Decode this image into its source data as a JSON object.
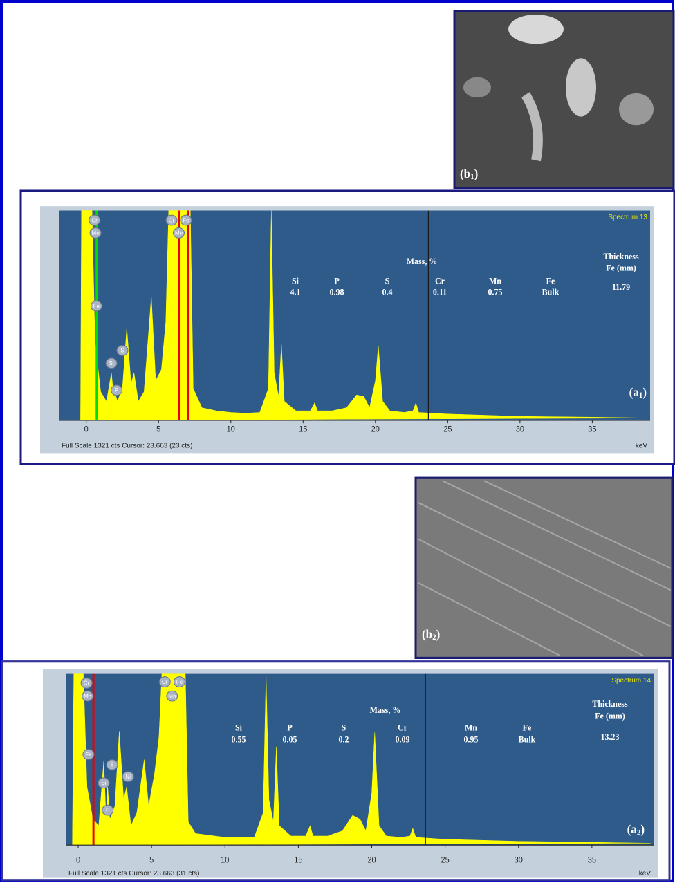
{
  "images": [
    {
      "label": {
        "prefix": "(b",
        "sub": "1",
        "suffix": ")"
      }
    },
    {
      "label": {
        "prefix": "(b",
        "sub": "2",
        "suffix": ")"
      }
    }
  ],
  "chart_data": [
    {
      "type": "area",
      "spectrum_name": "Spectrum 13",
      "footer": "Full Scale 1321 cts Cursor: 23.663 (23 cts)",
      "xlabel": "keV",
      "panel_label": {
        "prefix": "(a",
        "sub": "1",
        "suffix": ")"
      },
      "xlim": [
        -1.9,
        39
      ],
      "xticks": [
        0,
        5,
        10,
        15,
        20,
        25,
        30,
        35
      ],
      "ylim": [
        0,
        1321
      ],
      "color": "#ffff00",
      "cursor": 23.663,
      "markers": [
        {
          "x": 0.72,
          "color": "#00dd00"
        },
        {
          "x": 6.4,
          "color": "#ee0000"
        },
        {
          "x": 7.06,
          "color": "#ee0000"
        }
      ],
      "x": [
        -0.4,
        -0.33,
        0.4,
        0.6,
        1.0,
        1.4,
        1.74,
        1.9,
        2.0,
        2.15,
        2.5,
        2.8,
        3.1,
        3.3,
        3.6,
        4.0,
        4.5,
        4.8,
        5.2,
        5.5,
        5.7,
        7.2,
        7.4,
        8,
        9,
        10,
        11,
        12,
        12.6,
        12.8,
        13.0,
        13.3,
        13.5,
        13.7,
        14.5,
        15.5,
        15.8,
        16,
        17,
        18,
        18.7,
        19.2,
        19.6,
        20.0,
        20.2,
        20.5,
        21,
        22,
        22.6,
        22.8,
        23,
        25,
        30,
        35,
        39
      ],
      "values": [
        0,
        1321,
        1321,
        500,
        180,
        120,
        300,
        150,
        170,
        120,
        200,
        585,
        230,
        300,
        120,
        180,
        780,
        250,
        320,
        620,
        1321,
        1321,
        200,
        80,
        60,
        50,
        45,
        50,
        200,
        1321,
        300,
        150,
        480,
        120,
        60,
        60,
        110,
        60,
        60,
        80,
        160,
        150,
        80,
        250,
        470,
        120,
        60,
        50,
        60,
        110,
        50,
        40,
        25,
        20,
        15
      ],
      "peak_labels": [
        {
          "label": "Cr",
          "x": 0.57,
          "y": 1260
        },
        {
          "label": "Mn",
          "x": 0.64,
          "y": 1180
        },
        {
          "label": "Fe",
          "x": 0.7,
          "y": 720
        },
        {
          "label": "Si",
          "x": 1.74,
          "y": 360
        },
        {
          "label": "P",
          "x": 2.1,
          "y": 190
        },
        {
          "label": "S",
          "x": 2.5,
          "y": 440
        },
        {
          "label": "Cr",
          "x": 5.9,
          "y": 1260
        },
        {
          "label": "Fe",
          "x": 6.9,
          "y": 1260
        },
        {
          "label": "Mn",
          "x": 6.4,
          "y": 1180
        }
      ],
      "table": {
        "title": "Mass, %",
        "header": [
          "Si",
          "P",
          "S",
          "Cr",
          "Mn",
          "Fe"
        ],
        "values": [
          "4.1",
          "0.98",
          "0.4",
          "0.11",
          "0.75",
          "Bulk"
        ]
      },
      "thickness": {
        "title": [
          "Thickness",
          "Fe (mm)"
        ],
        "value": "11.79"
      }
    },
    {
      "type": "area",
      "spectrum_name": "Spectrum 14",
      "footer": "Full Scale 1321 cts Cursor: 23.663 (31 cts)",
      "xlabel": "keV",
      "panel_label": {
        "prefix": "(a",
        "sub": "2",
        "suffix": ")"
      },
      "xlim": [
        -0.85,
        39.2
      ],
      "xticks": [
        0,
        5,
        10,
        15,
        20,
        25,
        30,
        35
      ],
      "ylim": [
        0,
        1321
      ],
      "color": "#ffff00",
      "cursor": 23.663,
      "markers": [
        {
          "x": 1.04,
          "color": "#ee0000"
        }
      ],
      "x": [
        -0.4,
        -0.3,
        0.35,
        0.6,
        1.0,
        1.4,
        1.74,
        1.9,
        2.0,
        2.15,
        2.5,
        2.8,
        3.1,
        3.3,
        3.6,
        4.0,
        4.5,
        4.8,
        5.2,
        5.5,
        5.7,
        7.3,
        7.5,
        8,
        10,
        12,
        12.6,
        12.8,
        13.0,
        13.3,
        13.5,
        13.7,
        14.5,
        15.5,
        15.8,
        16,
        17,
        18,
        18.7,
        19.2,
        19.6,
        20.0,
        20.2,
        20.5,
        21,
        22,
        22.6,
        22.8,
        23,
        25,
        30,
        35,
        39
      ],
      "values": [
        0,
        1321,
        1321,
        450,
        200,
        150,
        650,
        200,
        470,
        200,
        300,
        880,
        350,
        450,
        150,
        250,
        660,
        300,
        550,
        830,
        1321,
        1321,
        180,
        90,
        60,
        60,
        250,
        1321,
        350,
        180,
        760,
        150,
        70,
        70,
        150,
        70,
        70,
        110,
        230,
        200,
        110,
        400,
        870,
        150,
        70,
        60,
        70,
        130,
        60,
        45,
        30,
        22,
        15
      ],
      "peak_labels": [
        {
          "label": "Cr",
          "x": 0.57,
          "y": 1250
        },
        {
          "label": "Mn",
          "x": 0.64,
          "y": 1150
        },
        {
          "label": "Fe",
          "x": 0.7,
          "y": 700
        },
        {
          "label": "S",
          "x": 2.31,
          "y": 620
        },
        {
          "label": "Si",
          "x": 1.74,
          "y": 480
        },
        {
          "label": "P",
          "x": 2.01,
          "y": 270
        },
        {
          "label": "Ni",
          "x": 3.4,
          "y": 528
        },
        {
          "label": "Cr",
          "x": 5.9,
          "y": 1260
        },
        {
          "label": "Fe",
          "x": 6.9,
          "y": 1260
        },
        {
          "label": "Mn",
          "x": 6.4,
          "y": 1150
        }
      ],
      "table": {
        "title": "Mass, %",
        "header": [
          "Si",
          "P",
          "S",
          "Cr",
          "Mn",
          "Fe"
        ],
        "values": [
          "0.55",
          "0.05",
          "0.2",
          "0.09",
          "0.95",
          "Bulk"
        ]
      },
      "thickness": {
        "title": [
          "Thickness",
          "Fe (mm)"
        ],
        "value": "13.23"
      }
    }
  ]
}
